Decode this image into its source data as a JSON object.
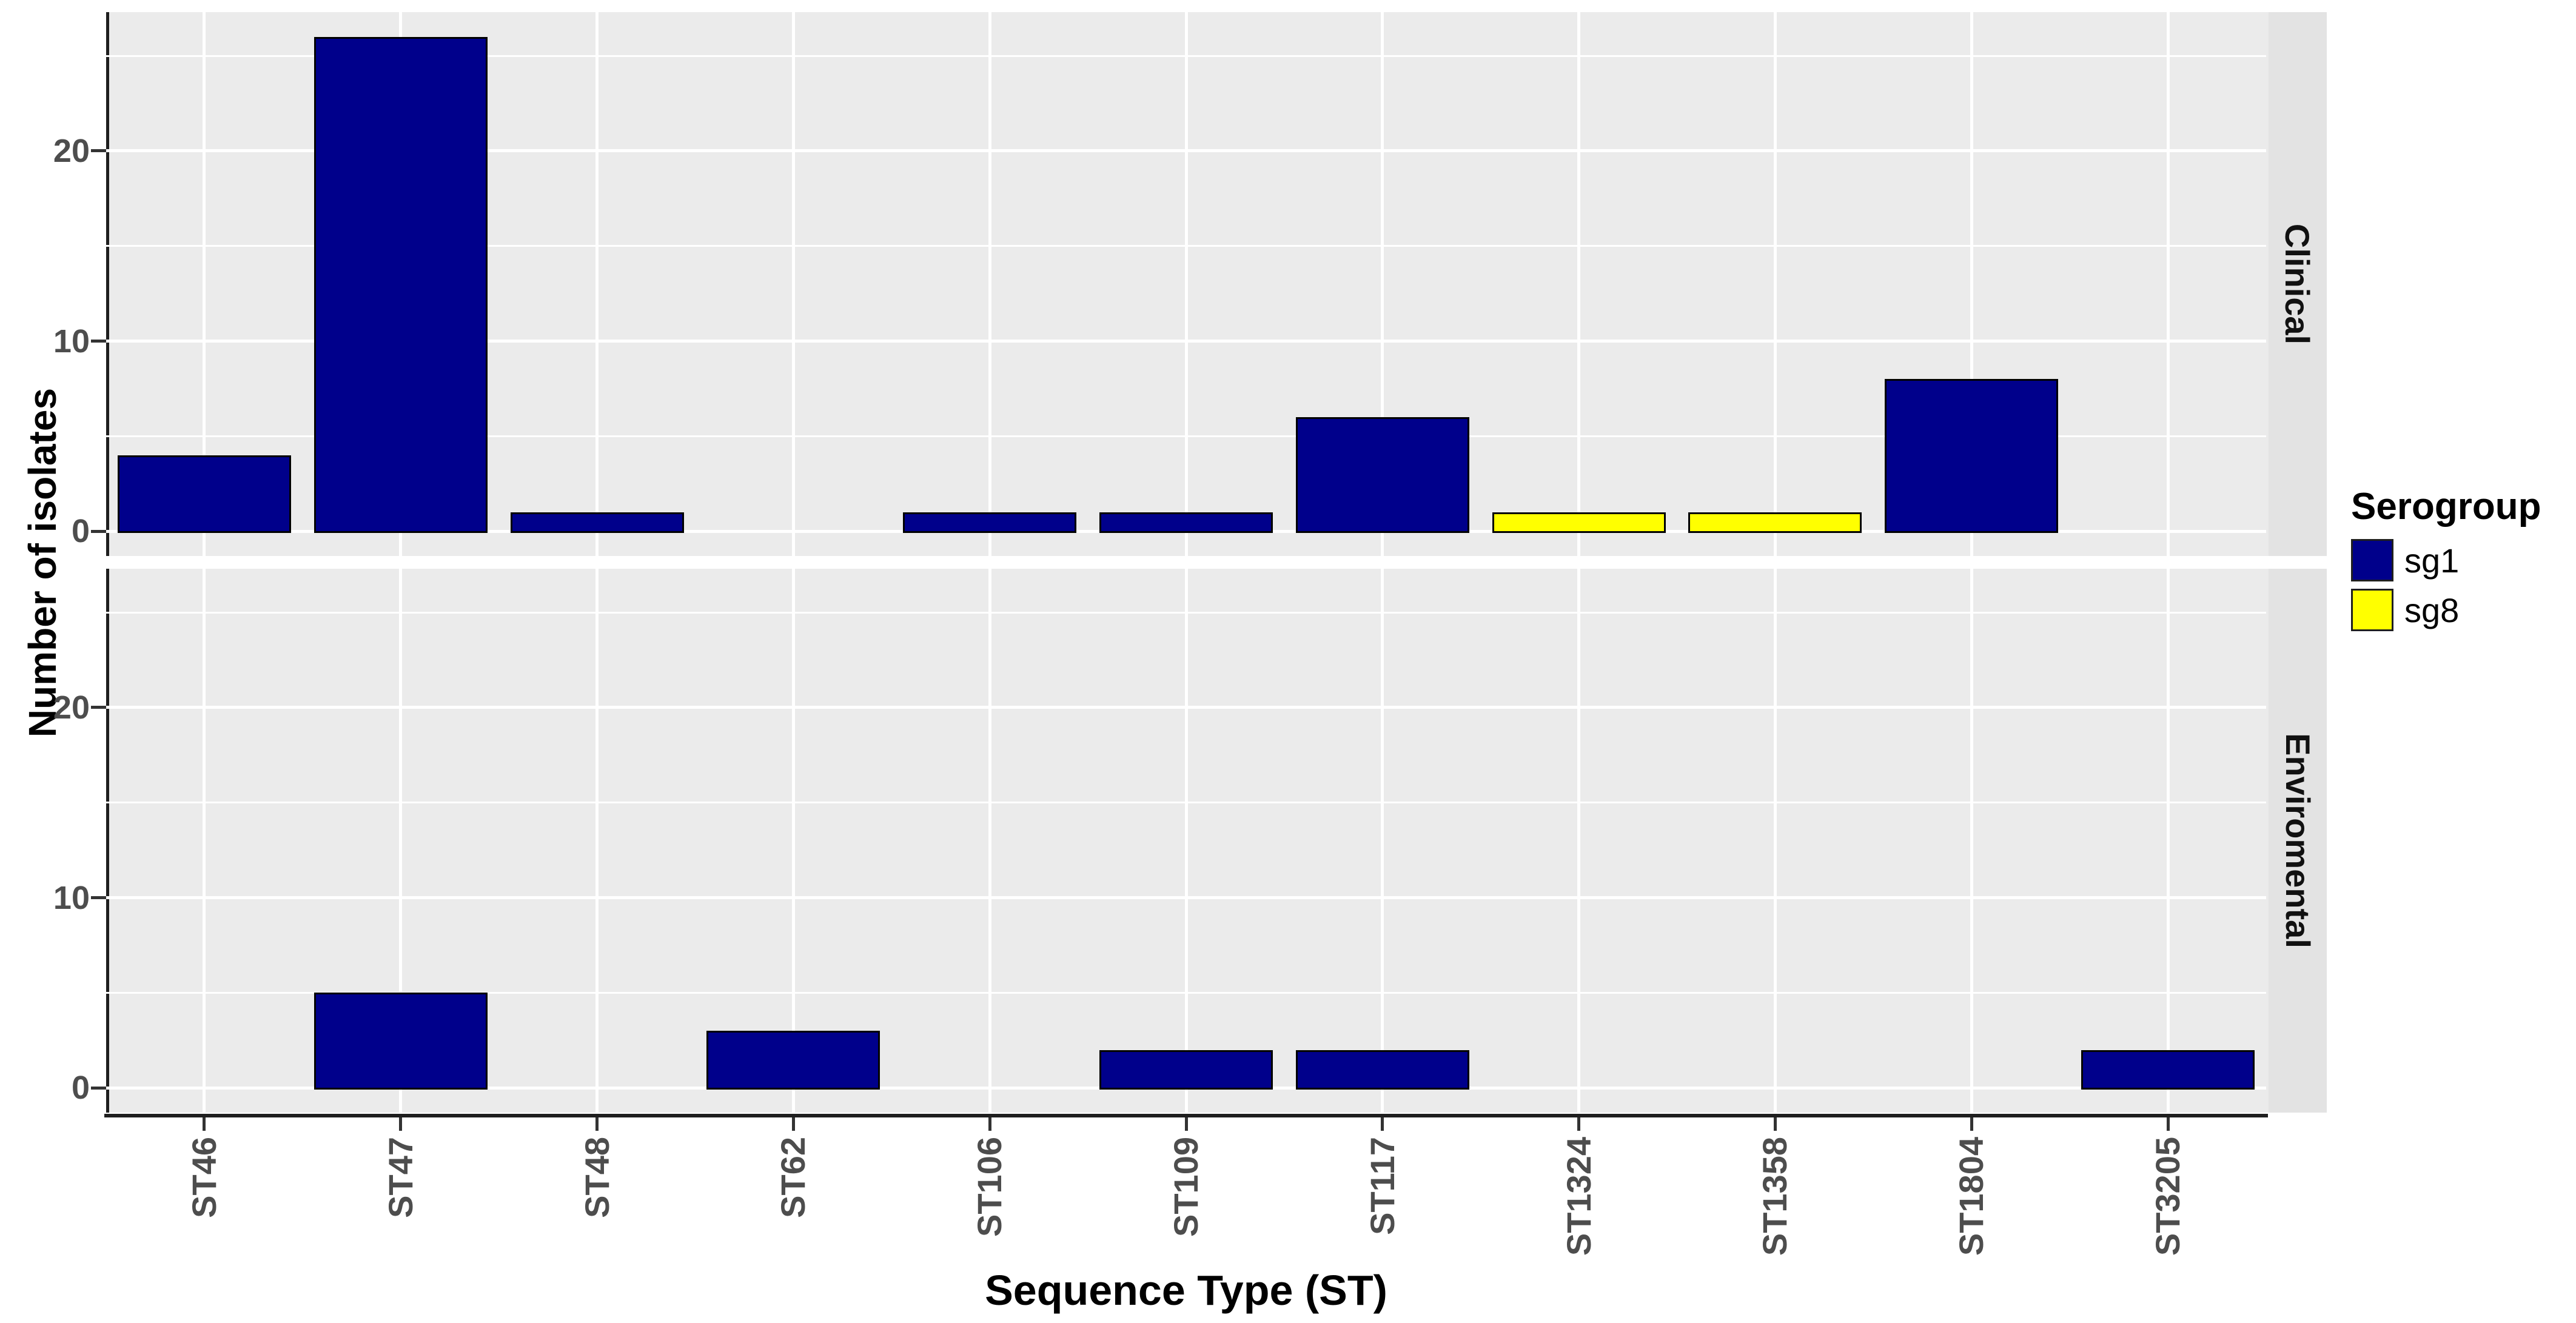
{
  "figure": {
    "y_axis_title": "Number of isolates",
    "x_axis_title": "Sequence Type (ST)"
  },
  "legend": {
    "title": "Serogroup",
    "entries": [
      {
        "label": "sg1",
        "color": "#00008B"
      },
      {
        "label": "sg8",
        "color": "#FFFF00"
      }
    ]
  },
  "chart_data": {
    "type": "bar",
    "title": "",
    "xlabel": "Sequence Type (ST)",
    "ylabel": "Number of isolates",
    "categories": [
      "ST46",
      "ST47",
      "ST48",
      "ST62",
      "ST106",
      "ST109",
      "ST117",
      "ST1324",
      "ST1358",
      "ST1804",
      "ST3205"
    ],
    "facets": [
      {
        "label": "Clinical",
        "series": [
          {
            "name": "sg1",
            "color": "#00008B",
            "values": [
              4,
              26,
              1,
              0,
              1,
              1,
              6,
              0,
              0,
              8,
              0
            ]
          },
          {
            "name": "sg8",
            "color": "#FFFF00",
            "values": [
              0,
              0,
              0,
              0,
              0,
              0,
              0,
              1,
              1,
              0,
              0
            ]
          }
        ]
      },
      {
        "label": "Enviromental",
        "series": [
          {
            "name": "sg1",
            "color": "#00008B",
            "values": [
              0,
              5,
              0,
              3,
              0,
              2,
              2,
              0,
              0,
              0,
              2
            ]
          },
          {
            "name": "sg8",
            "color": "#FFFF00",
            "values": [
              0,
              0,
              0,
              0,
              0,
              0,
              0,
              0,
              0,
              0,
              0
            ]
          }
        ]
      }
    ],
    "y_ticks": [
      0,
      10,
      20
    ],
    "y_minor_ticks": [
      5,
      15,
      25
    ],
    "ylim": [
      -1.3,
      27.3
    ],
    "legend_title": "Serogroup",
    "legend_position": "right",
    "grid": "horizontal major+minor white, vertical white at category centers",
    "colors": {
      "panel_bg": "#EBEBEB",
      "strip_bg": "#E3E3E3",
      "gridline": "#FFFFFF",
      "axis_line": "#1f1f1f",
      "tick_text": "#4d4d4d",
      "bar_outline": "#000000",
      "sg1": "#00008B",
      "sg8": "#FFFF00"
    }
  }
}
